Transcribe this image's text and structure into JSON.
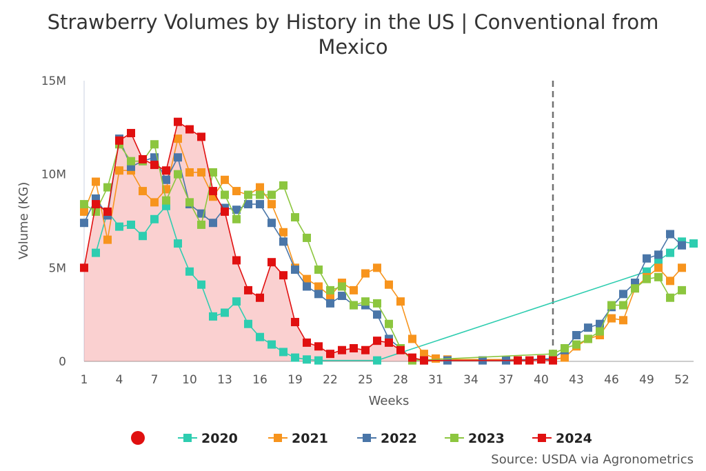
{
  "chart_data": {
    "type": "line",
    "title_lines": [
      "Strawberry Volumes by History in the US | Conventional from",
      "Mexico"
    ],
    "xlabel": "Weeks",
    "ylabel": "Volume (KG)",
    "ylim": [
      0,
      15000000
    ],
    "xlim": [
      1,
      53
    ],
    "y_ticks": [
      0,
      5000000,
      10000000,
      15000000
    ],
    "y_tick_labels": [
      "0",
      "5M",
      "10M",
      "15M"
    ],
    "x_ticks": [
      1,
      4,
      7,
      10,
      13,
      16,
      19,
      22,
      25,
      28,
      31,
      34,
      37,
      40,
      43,
      46,
      49,
      52
    ],
    "x_tick_labels": [
      "1",
      "4",
      "7",
      "10",
      "13",
      "16",
      "19",
      "22",
      "25",
      "28",
      "31",
      "34",
      "37",
      "40",
      "43",
      "46",
      "49",
      "52"
    ],
    "current_week_marker": 41,
    "grid": false,
    "legend_position": "bottom",
    "legend_marker_color": "#e01010",
    "source": "Source: USDA via Agronometrics",
    "series": [
      {
        "name": "2020",
        "color": "#2ecdb0",
        "points": [
          [
            2,
            5800000
          ],
          [
            3,
            8000000
          ],
          [
            4,
            7200000
          ],
          [
            5,
            7300000
          ],
          [
            6,
            6700000
          ],
          [
            7,
            7600000
          ],
          [
            8,
            8300000
          ],
          [
            9,
            6300000
          ],
          [
            10,
            4800000
          ],
          [
            11,
            4100000
          ],
          [
            12,
            2400000
          ],
          [
            13,
            2600000
          ],
          [
            14,
            3200000
          ],
          [
            15,
            2000000
          ],
          [
            16,
            1300000
          ],
          [
            17,
            900000
          ],
          [
            18,
            500000
          ],
          [
            19,
            200000
          ],
          [
            20,
            100000
          ],
          [
            21,
            50000
          ],
          [
            26,
            50000
          ],
          [
            49,
            4800000
          ],
          [
            50,
            5400000
          ],
          [
            51,
            5800000
          ],
          [
            52,
            6400000
          ],
          [
            53,
            6300000
          ]
        ]
      },
      {
        "name": "2021",
        "color": "#f7941d",
        "points": [
          [
            1,
            8000000
          ],
          [
            2,
            9600000
          ],
          [
            3,
            6500000
          ],
          [
            4,
            10200000
          ],
          [
            5,
            10200000
          ],
          [
            6,
            9100000
          ],
          [
            7,
            8500000
          ],
          [
            8,
            9200000
          ],
          [
            9,
            11900000
          ],
          [
            10,
            10100000
          ],
          [
            11,
            10100000
          ],
          [
            12,
            8800000
          ],
          [
            13,
            9700000
          ],
          [
            14,
            9100000
          ],
          [
            15,
            8900000
          ],
          [
            16,
            9300000
          ],
          [
            17,
            8400000
          ],
          [
            18,
            6900000
          ],
          [
            19,
            5000000
          ],
          [
            20,
            4400000
          ],
          [
            21,
            4000000
          ],
          [
            22,
            3500000
          ],
          [
            23,
            4200000
          ],
          [
            24,
            3800000
          ],
          [
            25,
            4700000
          ],
          [
            26,
            5000000
          ],
          [
            27,
            4100000
          ],
          [
            28,
            3200000
          ],
          [
            29,
            1200000
          ],
          [
            30,
            400000
          ],
          [
            31,
            150000
          ],
          [
            32,
            100000
          ],
          [
            41,
            100000
          ],
          [
            42,
            200000
          ],
          [
            43,
            800000
          ],
          [
            44,
            1200000
          ],
          [
            45,
            1400000
          ],
          [
            46,
            2300000
          ],
          [
            47,
            2200000
          ],
          [
            48,
            3900000
          ],
          [
            49,
            4500000
          ],
          [
            50,
            5000000
          ],
          [
            51,
            4300000
          ],
          [
            52,
            5000000
          ]
        ]
      },
      {
        "name": "2022",
        "color": "#4a76a8",
        "points": [
          [
            1,
            7400000
          ],
          [
            2,
            8700000
          ],
          [
            3,
            7800000
          ],
          [
            4,
            11900000
          ],
          [
            5,
            10400000
          ],
          [
            6,
            10700000
          ],
          [
            7,
            10900000
          ],
          [
            8,
            9700000
          ],
          [
            9,
            10900000
          ],
          [
            10,
            8400000
          ],
          [
            11,
            7900000
          ],
          [
            12,
            7400000
          ],
          [
            13,
            8200000
          ],
          [
            14,
            8100000
          ],
          [
            15,
            8400000
          ],
          [
            16,
            8400000
          ],
          [
            17,
            7400000
          ],
          [
            18,
            6400000
          ],
          [
            19,
            4900000
          ],
          [
            20,
            4000000
          ],
          [
            21,
            3600000
          ],
          [
            22,
            3100000
          ],
          [
            23,
            3500000
          ],
          [
            24,
            3000000
          ],
          [
            25,
            3000000
          ],
          [
            26,
            2500000
          ],
          [
            27,
            1200000
          ],
          [
            28,
            700000
          ],
          [
            29,
            100000
          ],
          [
            30,
            50000
          ],
          [
            32,
            50000
          ],
          [
            35,
            50000
          ],
          [
            37,
            50000
          ],
          [
            41,
            150000
          ],
          [
            42,
            600000
          ],
          [
            43,
            1400000
          ],
          [
            44,
            1800000
          ],
          [
            45,
            2000000
          ],
          [
            46,
            2900000
          ],
          [
            47,
            3600000
          ],
          [
            48,
            4200000
          ],
          [
            49,
            5500000
          ],
          [
            50,
            5700000
          ],
          [
            51,
            6800000
          ],
          [
            52,
            6200000
          ]
        ]
      },
      {
        "name": "2023",
        "color": "#8cc63f",
        "points": [
          [
            1,
            8400000
          ],
          [
            2,
            8000000
          ],
          [
            3,
            9300000
          ],
          [
            4,
            11600000
          ],
          [
            5,
            10700000
          ],
          [
            6,
            10700000
          ],
          [
            7,
            11600000
          ],
          [
            8,
            8600000
          ],
          [
            9,
            10000000
          ],
          [
            10,
            8500000
          ],
          [
            11,
            7300000
          ],
          [
            12,
            10100000
          ],
          [
            13,
            8900000
          ],
          [
            14,
            7600000
          ],
          [
            15,
            8900000
          ],
          [
            16,
            8900000
          ],
          [
            17,
            8900000
          ],
          [
            18,
            9400000
          ],
          [
            19,
            7700000
          ],
          [
            20,
            6600000
          ],
          [
            21,
            4900000
          ],
          [
            22,
            3800000
          ],
          [
            23,
            4000000
          ],
          [
            24,
            3000000
          ],
          [
            25,
            3200000
          ],
          [
            26,
            3100000
          ],
          [
            27,
            2000000
          ],
          [
            28,
            700000
          ],
          [
            29,
            50000
          ],
          [
            41,
            400000
          ],
          [
            42,
            700000
          ],
          [
            43,
            900000
          ],
          [
            44,
            1200000
          ],
          [
            45,
            1600000
          ],
          [
            46,
            3000000
          ],
          [
            47,
            3000000
          ],
          [
            48,
            3900000
          ],
          [
            49,
            4400000
          ],
          [
            50,
            4500000
          ],
          [
            51,
            3400000
          ],
          [
            52,
            3800000
          ]
        ]
      },
      {
        "name": "2024",
        "color": "#e01010",
        "points": [
          [
            1,
            5000000
          ],
          [
            2,
            8400000
          ],
          [
            3,
            8000000
          ],
          [
            4,
            11800000
          ],
          [
            5,
            12200000
          ],
          [
            6,
            10800000
          ],
          [
            7,
            10500000
          ],
          [
            8,
            10200000
          ],
          [
            9,
            12800000
          ],
          [
            10,
            12400000
          ],
          [
            11,
            12000000
          ],
          [
            12,
            9100000
          ],
          [
            13,
            8000000
          ],
          [
            14,
            5400000
          ],
          [
            15,
            3800000
          ],
          [
            16,
            3400000
          ],
          [
            17,
            5300000
          ],
          [
            18,
            4600000
          ],
          [
            19,
            2100000
          ],
          [
            20,
            1000000
          ],
          [
            21,
            800000
          ],
          [
            22,
            400000
          ],
          [
            23,
            600000
          ],
          [
            24,
            700000
          ],
          [
            25,
            600000
          ],
          [
            26,
            1100000
          ],
          [
            27,
            1000000
          ],
          [
            28,
            600000
          ],
          [
            29,
            200000
          ],
          [
            30,
            50000
          ],
          [
            38,
            50000
          ],
          [
            39,
            50000
          ],
          [
            40,
            100000
          ],
          [
            41,
            50000
          ]
        ]
      }
    ]
  }
}
